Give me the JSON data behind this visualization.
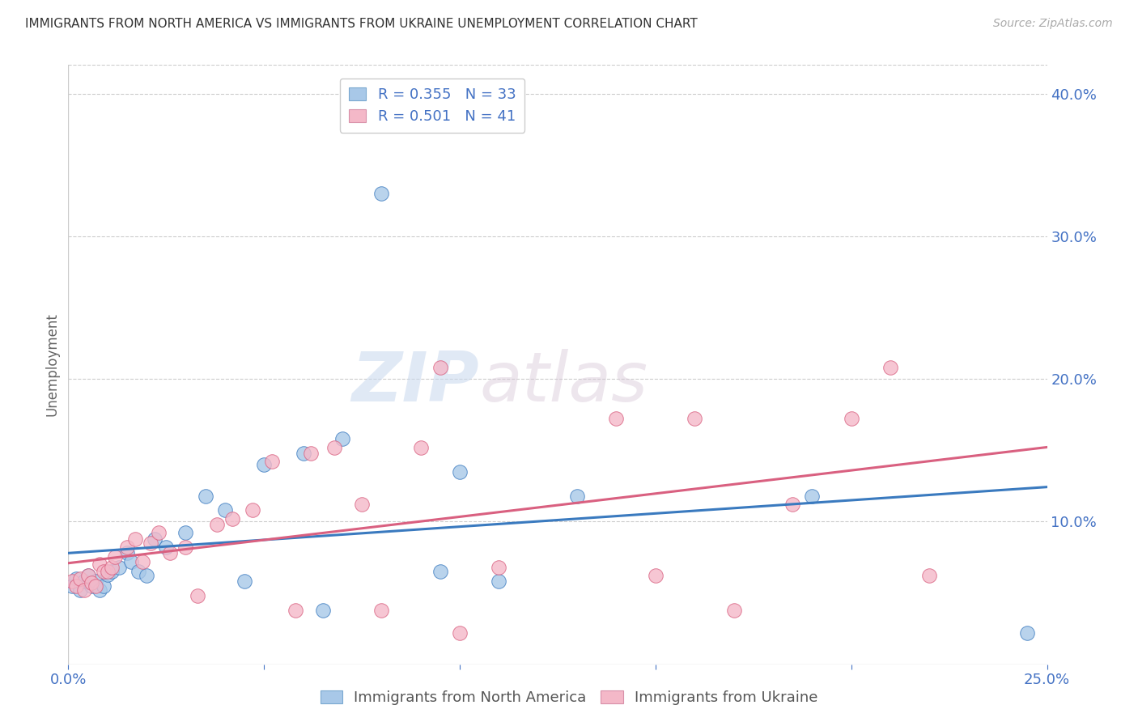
{
  "title": "IMMIGRANTS FROM NORTH AMERICA VS IMMIGRANTS FROM UKRAINE UNEMPLOYMENT CORRELATION CHART",
  "source": "Source: ZipAtlas.com",
  "ylabel": "Unemployment",
  "legend_label1": "Immigrants from North America",
  "legend_label2": "Immigrants from Ukraine",
  "R1": 0.355,
  "N1": 33,
  "R2": 0.501,
  "N2": 41,
  "color1": "#a8c8e8",
  "color2": "#f4b8c8",
  "line_color1": "#3a7abf",
  "line_color2": "#d96080",
  "xlim": [
    0.0,
    0.25
  ],
  "ylim": [
    0.0,
    0.42
  ],
  "xticks": [
    0.0,
    0.05,
    0.1,
    0.15,
    0.2,
    0.25
  ],
  "xticklabels": [
    "0.0%",
    "",
    "",
    "",
    "",
    "25.0%"
  ],
  "yticks_right": [
    0.1,
    0.2,
    0.3,
    0.4
  ],
  "yticklabels_right": [
    "10.0%",
    "20.0%",
    "30.0%",
    "40.0%"
  ],
  "blue_x": [
    0.001,
    0.002,
    0.003,
    0.004,
    0.005,
    0.006,
    0.007,
    0.008,
    0.009,
    0.01,
    0.011,
    0.013,
    0.015,
    0.016,
    0.018,
    0.02,
    0.022,
    0.025,
    0.03,
    0.035,
    0.04,
    0.045,
    0.05,
    0.06,
    0.065,
    0.07,
    0.08,
    0.095,
    0.1,
    0.11,
    0.13,
    0.19,
    0.245
  ],
  "blue_y": [
    0.055,
    0.06,
    0.052,
    0.058,
    0.062,
    0.055,
    0.058,
    0.052,
    0.055,
    0.063,
    0.065,
    0.068,
    0.078,
    0.072,
    0.065,
    0.062,
    0.088,
    0.082,
    0.092,
    0.118,
    0.108,
    0.058,
    0.14,
    0.148,
    0.038,
    0.158,
    0.33,
    0.065,
    0.135,
    0.058,
    0.118,
    0.118,
    0.022
  ],
  "pink_x": [
    0.001,
    0.002,
    0.003,
    0.004,
    0.005,
    0.006,
    0.007,
    0.008,
    0.009,
    0.01,
    0.011,
    0.012,
    0.015,
    0.017,
    0.019,
    0.021,
    0.023,
    0.026,
    0.03,
    0.033,
    0.038,
    0.042,
    0.047,
    0.052,
    0.058,
    0.062,
    0.068,
    0.075,
    0.08,
    0.09,
    0.095,
    0.1,
    0.11,
    0.14,
    0.15,
    0.16,
    0.17,
    0.185,
    0.2,
    0.21,
    0.22
  ],
  "pink_y": [
    0.058,
    0.055,
    0.06,
    0.052,
    0.062,
    0.057,
    0.055,
    0.07,
    0.065,
    0.065,
    0.068,
    0.075,
    0.082,
    0.088,
    0.072,
    0.085,
    0.092,
    0.078,
    0.082,
    0.048,
    0.098,
    0.102,
    0.108,
    0.142,
    0.038,
    0.148,
    0.152,
    0.112,
    0.038,
    0.152,
    0.208,
    0.022,
    0.068,
    0.172,
    0.062,
    0.172,
    0.038,
    0.112,
    0.172,
    0.208,
    0.062
  ],
  "watermark_zip": "ZIP",
  "watermark_atlas": "atlas",
  "background_color": "#ffffff",
  "grid_color": "#cccccc",
  "title_color": "#333333",
  "axis_color": "#4472C4",
  "source_color": "#aaaaaa"
}
